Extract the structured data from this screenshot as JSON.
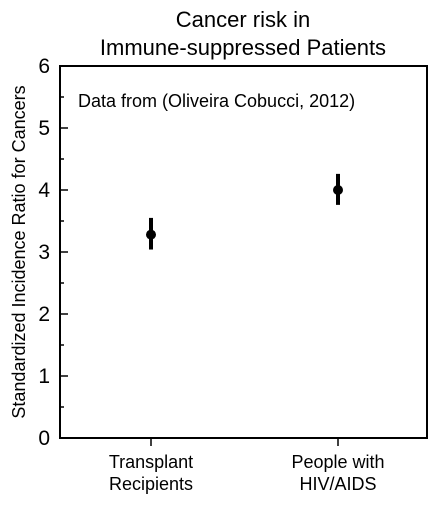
{
  "chart_data": {
    "type": "scatter",
    "title": [
      "Cancer risk in",
      "Immune-suppressed Patients"
    ],
    "annotation": "Data from (Oliveira Cobucci, 2012)",
    "xlabel": "",
    "ylabel": "Standardized Incidence Ratio for Cancers",
    "ylim": [
      0,
      6
    ],
    "y_major_ticks": [
      0,
      1,
      2,
      3,
      4,
      5,
      6
    ],
    "y_minor_step": 0.5,
    "grid": false,
    "categories": [
      [
        "Transplant",
        "Recipients"
      ],
      [
        "People with",
        "HIV/AIDS"
      ]
    ],
    "series": [
      {
        "values": [
          3.28,
          4.0
        ],
        "error_low": [
          3.04,
          3.76
        ],
        "error_high": [
          3.55,
          4.26
        ]
      }
    ],
    "colors": {
      "marker": "#000000",
      "axis": "#000000"
    }
  }
}
